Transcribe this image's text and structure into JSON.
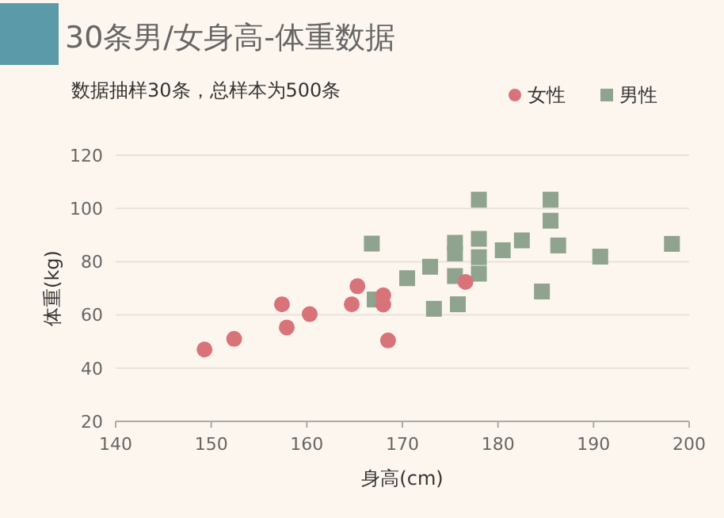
{
  "chart_data": {
    "type": "scatter",
    "title": "30条男/女身高-体重数据",
    "subtitle": "数据抽样30条，总样本为500条",
    "xlabel": "身高(cm)",
    "ylabel": "体重(kg)",
    "xlim": [
      140,
      200
    ],
    "xticks": [
      140,
      150,
      160,
      170,
      180,
      190,
      200
    ],
    "ylim": [
      20,
      120
    ],
    "yticks": [
      20,
      40,
      60,
      80,
      100,
      120
    ],
    "grid": "y",
    "legend": "top right",
    "series": [
      {
        "name": "女性",
        "color": "#d9737a",
        "marker": "circle",
        "x": [
          149.3,
          152.4,
          157.4,
          157.9,
          160.3,
          164.7,
          165.3,
          168,
          168,
          168.5,
          176.6
        ],
        "values": [
          47,
          51,
          64,
          55.3,
          60.3,
          64,
          70.8,
          67.4,
          63.9,
          50.4,
          72.4
        ]
      },
      {
        "name": "男性",
        "color": "#8fa38e",
        "marker": "square",
        "x": [
          166.8,
          167.1,
          170.5,
          172.9,
          173.3,
          178,
          185.5,
          185.5,
          175.5,
          175.5,
          178,
          178,
          180.5,
          182.5,
          186.3,
          190.7,
          198.2,
          175.5,
          178,
          175.8,
          184.6
        ],
        "values": [
          86.8,
          65.8,
          73.8,
          78.1,
          62.3,
          103.3,
          103.3,
          95.4,
          87.1,
          83.1,
          88.6,
          81.7,
          84.3,
          88,
          86.1,
          81.9,
          86.7,
          74.6,
          75.5,
          64,
          68.8
        ]
      }
    ]
  }
}
